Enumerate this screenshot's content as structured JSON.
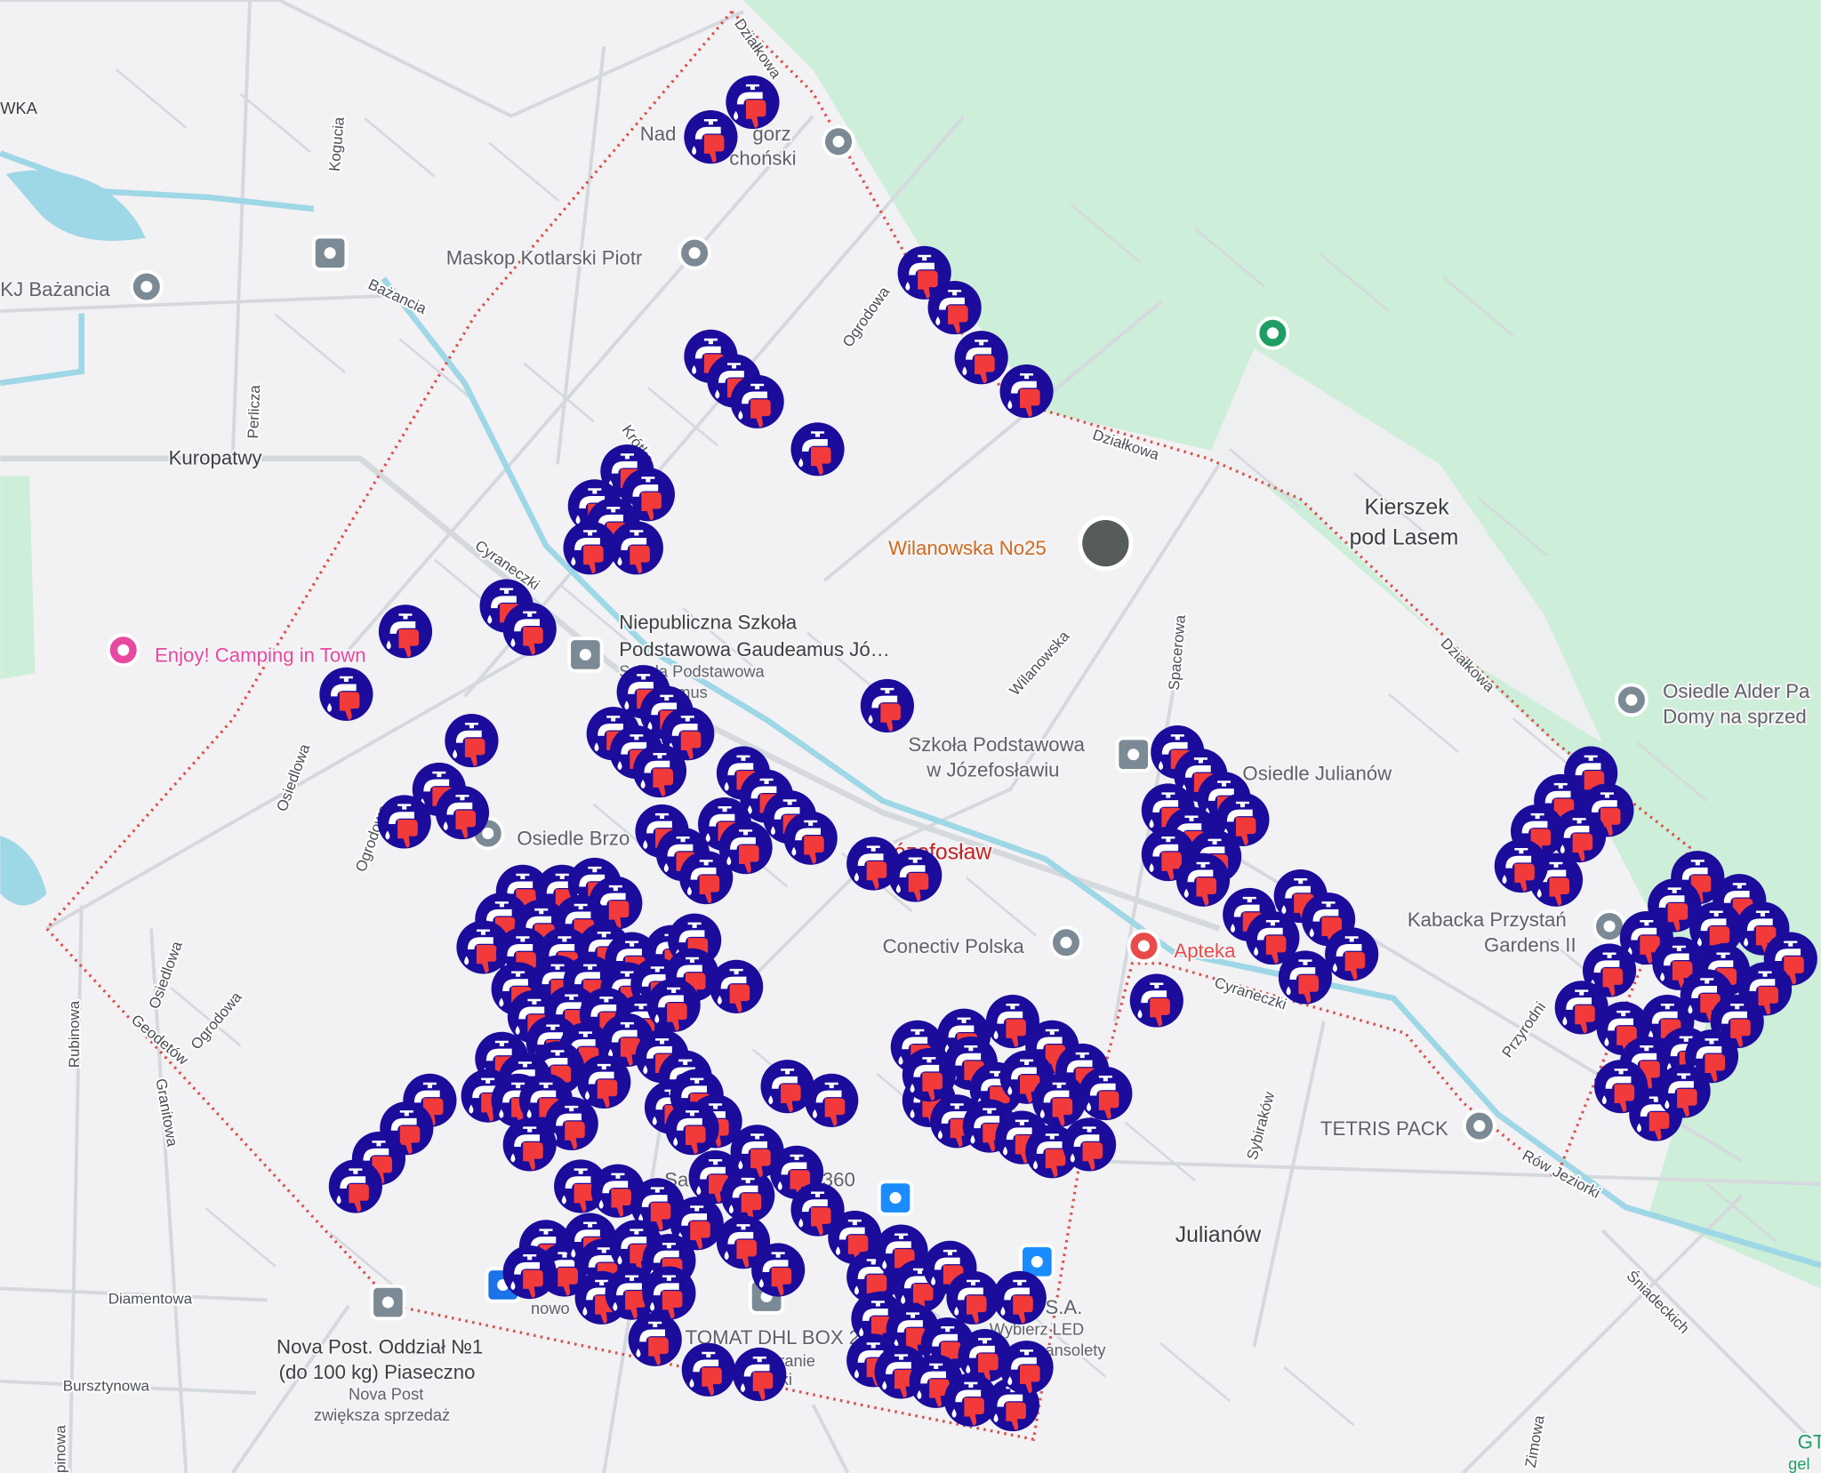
{
  "map": {
    "colors": {
      "land": "#f2f1f3",
      "forest": "#cdeed8",
      "water": "#9ed7e6",
      "boundary": "#d9534f",
      "marker_bg": "#1b0c9c",
      "marker_thumb": "#f23a3a",
      "marker_tap": "#ffffff"
    },
    "marker_icon": "faucet-thumbs-down-icon",
    "places": {
      "wka": "WKA",
      "nadl1": "Nad",
      "nadl2": "gorz",
      "nadl3": "choński",
      "maskop": "Maskop Kotlarski Piotr",
      "kj": "KJ Bażancia",
      "kuropatwy": "Kuropatwy",
      "wilanowska_no25": "Wilanowska No25",
      "kierszek1": "Kierszek",
      "kierszek2": "pod Lasem",
      "gaudeamus1": "Niepubliczna Szkoła",
      "gaudeamus2": "Podstawowa Gaudeamus Jó…",
      "gaudeamus3": "Szkoła Podstawowa",
      "gaudeamus4": "amus",
      "camping": "Enjoy! Camping in Town",
      "alder1": "Osiedle Alder Pa",
      "alder2": "Domy na sprzed",
      "szkola1": "Szkoła Podstawowa",
      "szkola2": "w Józefosławiu",
      "julianow_osiedle": "Osiedle Julianów",
      "brzoz": "Osiedle Brzo",
      "jozefoslaw": "Józefosław",
      "conectiv": "Conectiv Polska",
      "apteka": "Apteka",
      "kabacka1": "Kabacka Przystań",
      "kabacka2": "Gardens II",
      "tetris": "TETRIS PACK",
      "julianow": "Julianów",
      "sa": "S.A.",
      "led1": "Wybierz LED",
      "led2": "ansolety",
      "dhl": "TOMAT DHL BOX 2",
      "dhl2": "ieranie",
      "dhl3": "ki",
      "sa360": "360",
      "sa360b": "Sa",
      "nowo": "nowo",
      "nova1": "Nova Post. Oddział №1",
      "nova2": "(do 100 kg) Piaseczno",
      "nova3": "Nova Post",
      "nova4": "zwiększa sprzedaż",
      "gt": "GT",
      "gel": "gel"
    },
    "roads": {
      "dzialkowa": "Działkowa",
      "kogucia": "Kogucia",
      "bazancia": "Bażancia",
      "perlicza": "Perlicza",
      "krotka": "Krótka",
      "ogrodowa": "Ogrodowa",
      "cyraneczki": "Cyraneczki",
      "osiedlowa": "Osiedlowa",
      "wilanowska": "Wilanowska",
      "spacerowa": "Spacerowa",
      "geodetow": "Geodetów",
      "granitowa": "Granitowa",
      "rubinowa": "Rubinowa",
      "diamentowa": "Diamentowa",
      "bursztynowa": "Bursztynowa",
      "sybirakow": "Sybiraków",
      "przyrodnicza": "Przyrodni",
      "row_jeziorki": "Rów Jeziorki",
      "sniadeckich": "Śniadeckich",
      "zimowa": "Zimowa",
      "opinowa": "pinowa"
    }
  }
}
